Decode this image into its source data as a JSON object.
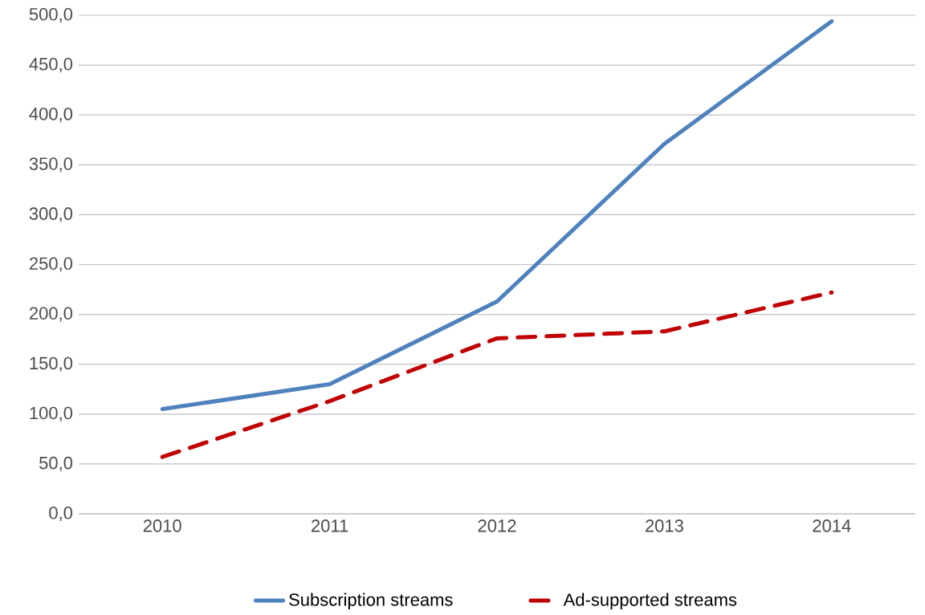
{
  "chart_data": {
    "type": "line",
    "categories": [
      "2010",
      "2011",
      "2012",
      "2013",
      "2014"
    ],
    "series": [
      {
        "name": "Subscription streams",
        "color": "#4f81bd",
        "line_style": "solid",
        "values": [
          105,
          130,
          213,
          371,
          494
        ]
      },
      {
        "name": "Ad-supported streams",
        "color": "#c00000",
        "line_style": "dashed",
        "values": [
          57,
          113,
          176,
          183,
          222
        ]
      }
    ],
    "ylim": [
      0,
      500
    ],
    "yticks": [
      {
        "value": 0,
        "label": "0,0"
      },
      {
        "value": 50,
        "label": "50,0"
      },
      {
        "value": 100,
        "label": "100,0"
      },
      {
        "value": 150,
        "label": "150,0"
      },
      {
        "value": 200,
        "label": "200,0"
      },
      {
        "value": 250,
        "label": "250,0"
      },
      {
        "value": 300,
        "label": "300,0"
      },
      {
        "value": 350,
        "label": "350,0"
      },
      {
        "value": 400,
        "label": "400,0"
      },
      {
        "value": 450,
        "label": "450,0"
      },
      {
        "value": 500,
        "label": "500,0"
      }
    ],
    "grid": "y",
    "legend": "bottom"
  }
}
